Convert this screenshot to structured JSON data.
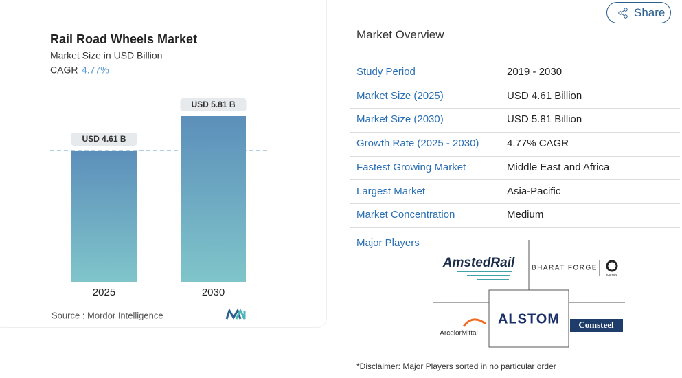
{
  "share": "Share",
  "chart_data": {
    "type": "bar",
    "title": "Rail Road Wheels Market",
    "subtitle": "Market Size in USD Billion",
    "cagr_label": "CAGR",
    "cagr": "4.77%",
    "categories": [
      "2025",
      "2030"
    ],
    "values": [
      4.61,
      5.81
    ],
    "value_labels": [
      "USD 4.61 B",
      "USD 5.81 B"
    ],
    "color_top": "#5c8fba",
    "color_bottom": "#80c5ca",
    "reference_line": true,
    "source": "Source : Mordor Intelligence"
  },
  "overview": {
    "title": "Market Overview",
    "rows": [
      [
        "Study Period",
        "2019 - 2030"
      ],
      [
        "Market Size (2025)",
        "USD 4.61 Billion"
      ],
      [
        "Market Size (2030)",
        "USD 5.81 Billion"
      ],
      [
        "Growth Rate (2025 - 2030)",
        "4.77% CAGR"
      ],
      [
        "Fastest Growing Market",
        "Middle East and Africa"
      ],
      [
        "Largest Market",
        "Asia-Pacific"
      ],
      [
        "Market Concentration",
        "Medium"
      ]
    ],
    "players_title": "Major Players",
    "players": [
      "AmstedRail",
      "BHARAT FORGE",
      "KALYANI",
      "ALSTOM",
      "ArcelorMittal",
      "Comsteel"
    ],
    "disclaimer": "*Disclaimer: Major Players sorted in no particular order"
  }
}
